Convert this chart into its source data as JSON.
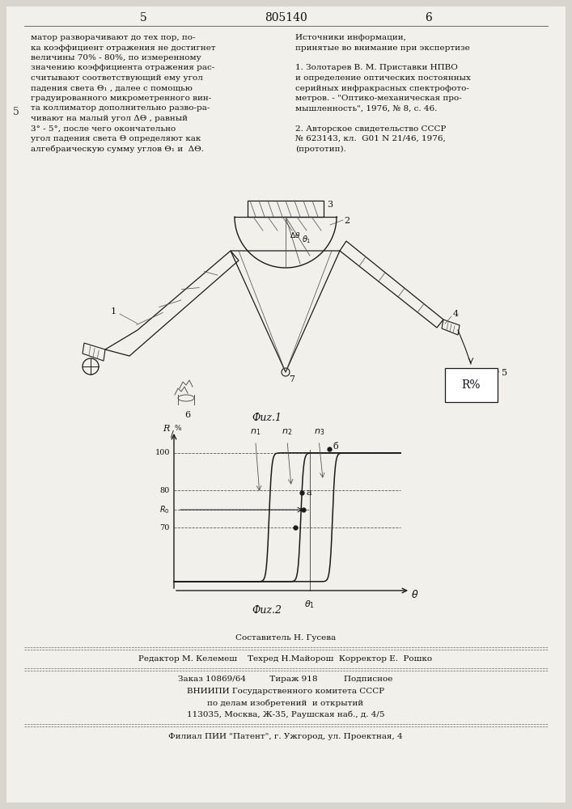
{
  "bg_color": "#d8d5ce",
  "page_color": "#f2f0eb",
  "top_left_col": "матор разворачивают до тех пор, по-\nка коэффициент отражения не достигнет\nвеличины 70% - 80%, по измеренному\nзначению коэффициента отражения рас-\nсчитывают соответствующий ему угол\nпадения света Θ₁ , далее с помощью\nградуированного микрометренного вин-\nта коллиматор дополнительно разво-ра-\nчивают на малый угол ΔΘ , равный\n3° - 5°, после чего окончательно\nугол падения света Θ определяют как\nалгебраическую сумму углов Θ₁ и  ΔΘ.",
  "top_right_col": "Источники информации,\nпринятые во внимание при экспертизе\n\n1. Золотарев В. М. Приставки НПВО\nи определение оптических постоянных\nсерийных инфракрасных спектрофото-\nметров. - \"Оптико-механическая про-\nмышленность\", 1976, № 8, с. 46.\n\n2. Авторское свидетельство СССР\n№ 623143, кл.  G01 N 21/46, 1976,\n(прототип).",
  "header_num_left": "5",
  "header_num_center": "805140",
  "header_num_right": "6",
  "left_col_num": "5",
  "fig1_caption": "Фuz.1",
  "fig2_caption": "Фuz.2",
  "footer_line1": "Составитель Н. Гусева",
  "footer_line2": "Редактор М. Келемеш    Техред Н.Майорош  Корректор Е.  Рошко",
  "footer_line3": "Заказ 10869/64         Тираж 918          Подписное",
  "footer_line4": "ВНИИПИ Государственного комитета СССР",
  "footer_line5": "по делам изобретений  и открытий",
  "footer_line6": "113035, Москва, Ж-35, Раушская наб., д. 4/5",
  "footer_line7": "Филиал ПИИ \"Патент\", г. Ужгород, ул. Проектная, 4"
}
